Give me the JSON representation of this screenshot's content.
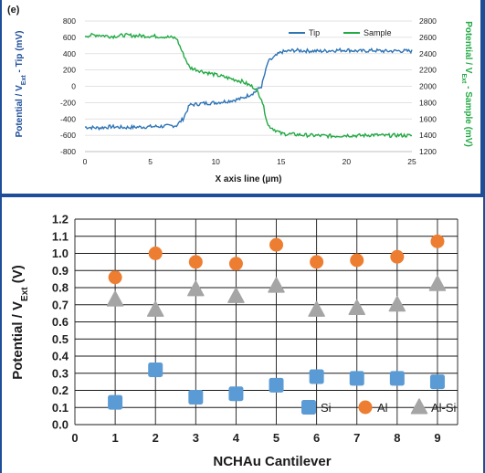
{
  "chart_data": [
    {
      "id": "top",
      "type": "line",
      "panel_label": "(e)",
      "title": "",
      "xlabel": "X axis line (µm)",
      "ylabel": "Potential / V",
      "ylabel_sub": "Ext",
      "ylabel_suffix": " - Tip (mV)",
      "y2label": "Potential / V",
      "y2label_sub": "Ext",
      "y2label_suffix": " - Sample (mV)",
      "xlim": [
        0,
        25
      ],
      "xticks": [
        0,
        5,
        10,
        15,
        20,
        25
      ],
      "ylim": [
        -800,
        800
      ],
      "yticks": [
        -800,
        -600,
        -400,
        -200,
        0,
        200,
        400,
        600,
        800
      ],
      "y2lim": [
        1200,
        2800
      ],
      "y2ticks": [
        1200,
        1400,
        1600,
        1800,
        2000,
        2200,
        2400,
        2600,
        2800
      ],
      "grid": "horizontal",
      "legend_position": "top-right",
      "series": [
        {
          "name": "Tip",
          "axis": "left",
          "color": "#2e75b6",
          "x": [
            0,
            1,
            2,
            3,
            4,
            5,
            6,
            7,
            7.5,
            8,
            9,
            10,
            11,
            12,
            13,
            13.5,
            14,
            15,
            16,
            17,
            18,
            19,
            20,
            21,
            22,
            23,
            24,
            25
          ],
          "y": [
            -500,
            -510,
            -495,
            -505,
            -500,
            -495,
            -490,
            -480,
            -400,
            -230,
            -210,
            -200,
            -180,
            -150,
            -70,
            0,
            300,
            420,
            440,
            435,
            430,
            440,
            445,
            430,
            440,
            430,
            435,
            430
          ]
        },
        {
          "name": "Sample",
          "axis": "right",
          "color": "#22aa44",
          "x": [
            0,
            1,
            2,
            3,
            4,
            5,
            6,
            7,
            7.5,
            8,
            9,
            10,
            11,
            12,
            13,
            13.5,
            14,
            15,
            16,
            17,
            18,
            19,
            20,
            21,
            22,
            23,
            24,
            25
          ],
          "y": [
            2620,
            2630,
            2610,
            2625,
            2620,
            2615,
            2610,
            2590,
            2400,
            2230,
            2180,
            2140,
            2100,
            2060,
            1980,
            1850,
            1520,
            1420,
            1410,
            1400,
            1395,
            1390,
            1400,
            1395,
            1405,
            1395,
            1400,
            1395
          ]
        }
      ]
    },
    {
      "id": "bottom",
      "type": "scatter",
      "title": "",
      "xlabel": "NCHAu Cantilever",
      "ylabel": "Potential / V",
      "ylabel_sub": "Ext",
      "ylabel_suffix": " (V)",
      "xlim": [
        0,
        9.5
      ],
      "xticks": [
        0,
        1,
        2,
        3,
        4,
        5,
        6,
        7,
        8,
        9
      ],
      "ylim": [
        0,
        1.2
      ],
      "yticks": [
        0.0,
        0.1,
        0.2,
        0.3,
        0.4,
        0.5,
        0.6,
        0.7,
        0.8,
        0.9,
        1.0,
        1.1,
        1.2
      ],
      "grid": true,
      "legend_position": "bottom-right",
      "series": [
        {
          "name": "Si",
          "marker": "square",
          "color": "#5b9bd5",
          "x": [
            1,
            2,
            3,
            4,
            5,
            6,
            7,
            8,
            9
          ],
          "y": [
            0.13,
            0.32,
            0.16,
            0.18,
            0.23,
            0.28,
            0.27,
            0.27,
            0.25
          ]
        },
        {
          "name": "Al",
          "marker": "circle",
          "color": "#ed7d31",
          "x": [
            1,
            2,
            3,
            4,
            5,
            6,
            7,
            8,
            9
          ],
          "y": [
            0.86,
            1.0,
            0.95,
            0.94,
            1.05,
            0.95,
            0.96,
            0.98,
            1.07
          ]
        },
        {
          "name": "Al-Si",
          "marker": "triangle",
          "color": "#a5a5a5",
          "x": [
            1,
            2,
            3,
            4,
            5,
            6,
            7,
            8,
            9
          ],
          "y": [
            0.73,
            0.67,
            0.79,
            0.75,
            0.81,
            0.67,
            0.68,
            0.7,
            0.82
          ]
        }
      ]
    }
  ]
}
